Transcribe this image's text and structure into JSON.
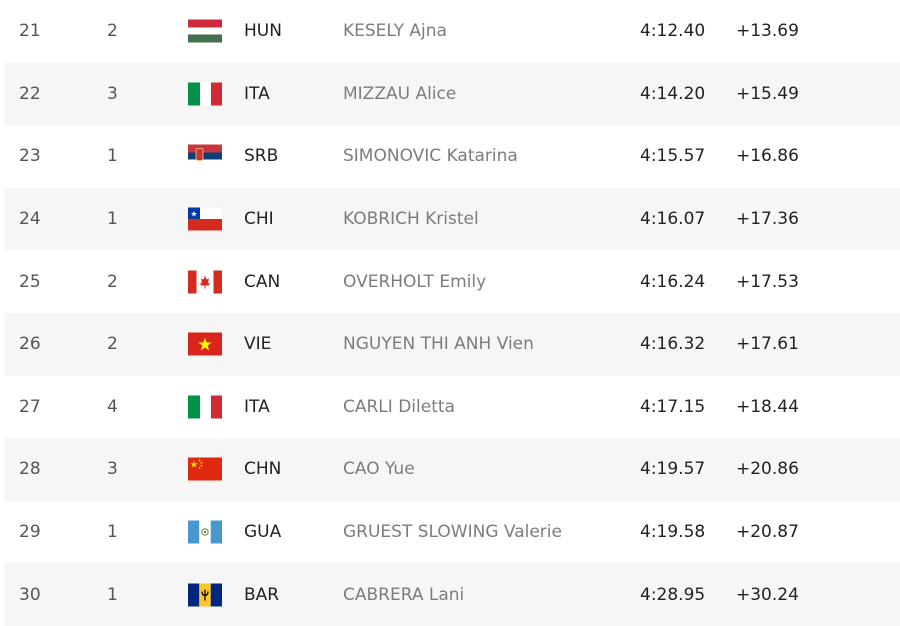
{
  "rows": [
    {
      "rank": "21",
      "heat": "2",
      "flag_icon": "hungary-flag-icon",
      "noc": "HUN",
      "name": "KESELY Ajna",
      "time": "4:12.40",
      "diff": "+13.69"
    },
    {
      "rank": "22",
      "heat": "3",
      "flag_icon": "italy-flag-icon",
      "noc": "ITA",
      "name": "MIZZAU Alice",
      "time": "4:14.20",
      "diff": "+15.49"
    },
    {
      "rank": "23",
      "heat": "1",
      "flag_icon": "serbia-flag-icon",
      "noc": "SRB",
      "name": "SIMONOVIC Katarina",
      "time": "4:15.57",
      "diff": "+16.86"
    },
    {
      "rank": "24",
      "heat": "1",
      "flag_icon": "chile-flag-icon",
      "noc": "CHI",
      "name": "KOBRICH Kristel",
      "time": "4:16.07",
      "diff": "+17.36"
    },
    {
      "rank": "25",
      "heat": "2",
      "flag_icon": "canada-flag-icon",
      "noc": "CAN",
      "name": "OVERHOLT Emily",
      "time": "4:16.24",
      "diff": "+17.53"
    },
    {
      "rank": "26",
      "heat": "2",
      "flag_icon": "vietnam-flag-icon",
      "noc": "VIE",
      "name": "NGUYEN THI ANH Vien",
      "time": "4:16.32",
      "diff": "+17.61"
    },
    {
      "rank": "27",
      "heat": "4",
      "flag_icon": "italy-flag-icon",
      "noc": "ITA",
      "name": "CARLI Diletta",
      "time": "4:17.15",
      "diff": "+18.44"
    },
    {
      "rank": "28",
      "heat": "3",
      "flag_icon": "china-flag-icon",
      "noc": "CHN",
      "name": "CAO Yue",
      "time": "4:19.57",
      "diff": "+20.86"
    },
    {
      "rank": "29",
      "heat": "1",
      "flag_icon": "guatemala-flag-icon",
      "noc": "GUA",
      "name": "GRUEST SLOWING Valerie",
      "time": "4:19.58",
      "diff": "+20.87"
    },
    {
      "rank": "30",
      "heat": "1",
      "flag_icon": "barbados-flag-icon",
      "noc": "BAR",
      "name": "CABRERA Lani",
      "time": "4:28.95",
      "diff": "+30.24"
    }
  ],
  "colors": {
    "row_alt_background": "#f6f6f6",
    "name_text": "#7c7c7c",
    "primary_text": "#222222"
  }
}
